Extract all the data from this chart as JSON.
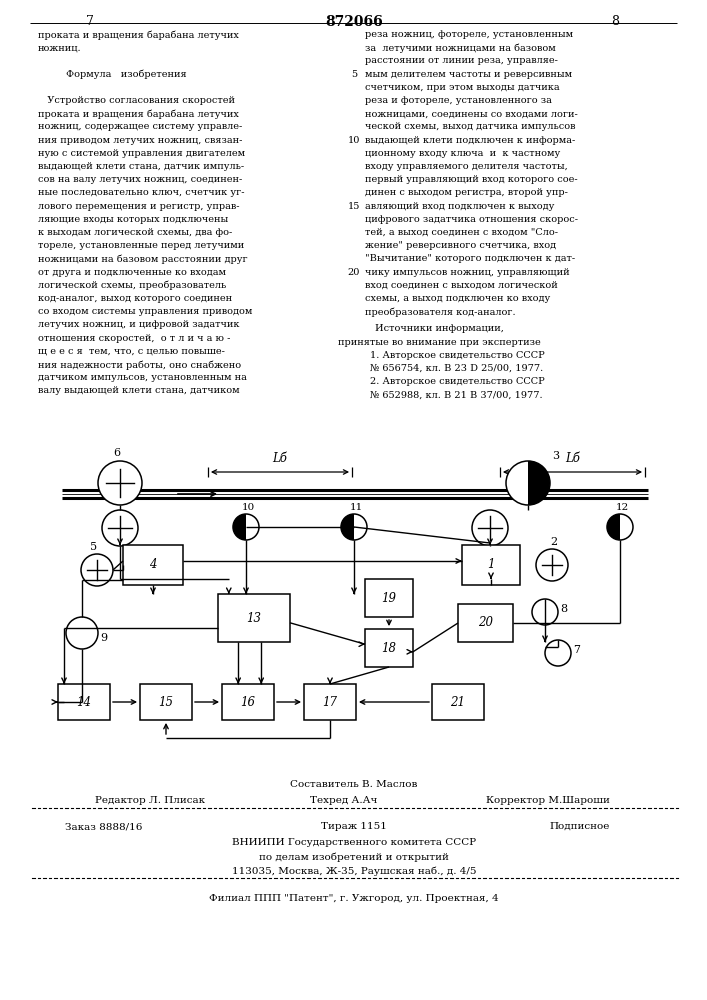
{
  "page_num_left": "7",
  "page_num_right": "8",
  "patent_number": "872066",
  "left_text": [
    "проката и вращения барабана летучих",
    "ножниц.",
    "",
    "         Формула   изобретения",
    "",
    "   Устройство согласования скоростей",
    "проката и вращения барабана летучих",
    "ножниц, содержащее систему управле-",
    "ния приводом летучих ножниц, связан-",
    "ную с системой управления двигателем",
    "выдающей клети стана, датчик импуль-",
    "сов на валу летучих ножниц, соединен-",
    "ные последовательно ключ, счетчик уг-",
    "лового перемещения и регистр, управ-",
    "ляющие входы которых подключены",
    "к выходам логической схемы, два фо-",
    "тореле, установленные перед летучими",
    "ножницами на базовом расстоянии друг",
    "от друга и подключенные ко входам",
    "логической схемы, преобразователь",
    "код-аналог, выход которого соединен",
    "со входом системы управления приводом",
    "летучих ножниц, и цифровой задатчик",
    "отношения скоростей,  о т л и ч а ю -",
    "щ е е с я  тем, что, с целью повыше-",
    "ния надежности работы, оно снабжено",
    "датчиком импульсов, установленным на",
    "валу выдающей клети стана, датчиком"
  ],
  "right_text": [
    "реза ножниц, фотореле, установленным",
    "за  летучими ножницами на базовом",
    "расстоянии от линии реза, управляе-",
    "мым делителем частоты и реверсивным",
    "счетчиком, при этом выходы датчика",
    "реза и фотореле, установленного за",
    "ножницами, соединены со входами логи-",
    "ческой схемы, выход датчика импульсов",
    "выдающей клети подключен к информа-",
    "ционному входу ключа  и  к частному",
    "входу управляемого делителя частоты,",
    "первый управляющий вход которого сое-",
    "динен с выходом регистра, второй упр-",
    "авляющий вход подключен к выходу",
    "цифрового задатчика отношения скорос-",
    "тей, а выход соединен с входом \"Сло-",
    "жение\" реверсивного счетчика, вход",
    "\"Вычитание\" которого подключен к дат-",
    "чику импульсов ножниц, управляющий",
    "вход соединен с выходом логической",
    "схемы, а выход подключен ко входу",
    "преобразователя код-аналог."
  ],
  "line_numbers": {
    "4": 5,
    "9": 10,
    "14": 15,
    "19": 20,
    "24": 25
  },
  "sources_header": "Источники информации,",
  "sources_subheader": "принятые во внимание при экспертизе",
  "source1a": "1. Авторское свидетельство СССР",
  "source1b": "№ 656754, кл. В 23 D 25/00, 1977.",
  "source2a": "2. Авторское свидетельство СССР",
  "source2b": "№ 652988, кл. В 21 В 37/00, 1977.",
  "footer1": "Составитель В. Маслов",
  "footer2_l": "Редактор Л. Плисак",
  "footer2_m": "Техред А.Ач",
  "footer2_r": "Корректор М.Шароши",
  "footer3_l": "Заказ 8888/16",
  "footer3_m": "Тираж 1151",
  "footer3_r": "Подписное",
  "footer4": "ВНИИПИ Государственного комитета СССР",
  "footer5": "по делам изобретений и открытий",
  "footer6": "113035, Москва, Ж-35, Раушская наб., д. 4/5",
  "footer7": "Филиал ППП \"Патент\", г. Ужгород, ул. Проектная, 4",
  "bg": "#ffffff",
  "fg": "#000000"
}
